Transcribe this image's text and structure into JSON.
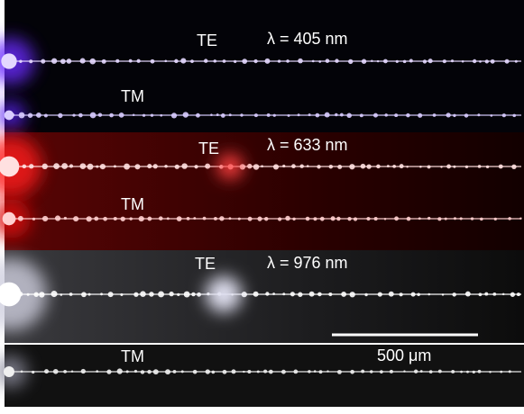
{
  "panels": [
    {
      "te": "TE",
      "wavelength": "λ = 405 nm",
      "tm": "TM"
    },
    {
      "te": "TE",
      "wavelength": "λ = 633 nm",
      "tm": "TM"
    },
    {
      "te": "TE",
      "wavelength": "λ = 976 nm",
      "tm": "TM"
    }
  ],
  "scale_bar": "500 μm"
}
